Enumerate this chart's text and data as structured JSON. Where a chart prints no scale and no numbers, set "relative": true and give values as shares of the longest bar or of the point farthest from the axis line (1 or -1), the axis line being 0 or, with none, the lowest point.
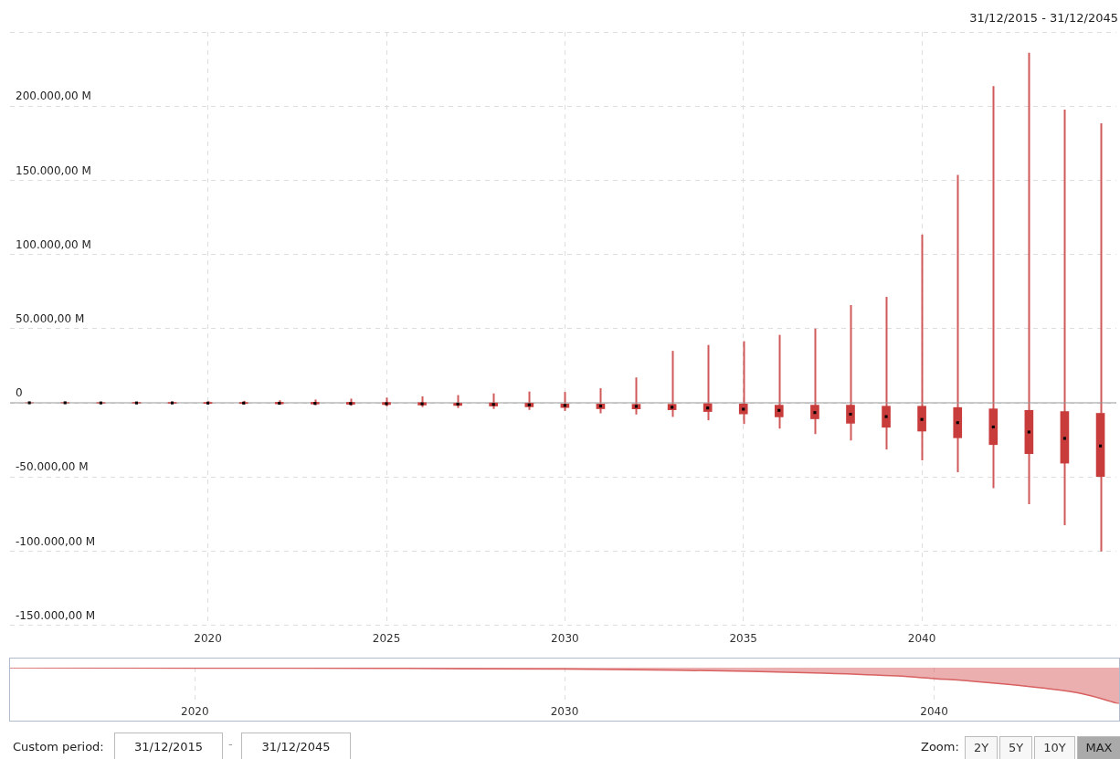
{
  "chart_data": [
    {
      "type": "box",
      "x": [
        "2015",
        "2016",
        "2017",
        "2018",
        "2019",
        "2020",
        "2021",
        "2022",
        "2023",
        "2024",
        "2025",
        "2026",
        "2027",
        "2028",
        "2029",
        "2030",
        "2031",
        "2032",
        "2033",
        "2034",
        "2035",
        "2036",
        "2037",
        "2038",
        "2039",
        "2040",
        "2041",
        "2042",
        "2043",
        "2044",
        "2045"
      ],
      "series": [
        {
          "color": "#c83c3c",
          "boxes": [
            {
              "low": 0,
              "q1": 0,
              "median": 0,
              "q3": 0,
              "high": 0
            },
            {
              "low": -300,
              "q1": -100,
              "median": 0,
              "q3": 100,
              "high": 300
            },
            {
              "low": -400,
              "q1": -200,
              "median": -100,
              "q3": 100,
              "high": 500
            },
            {
              "low": -500,
              "q1": -200,
              "median": -100,
              "q3": 200,
              "high": 600
            },
            {
              "low": -600,
              "q1": -300,
              "median": -100,
              "q3": 200,
              "high": 800
            },
            {
              "low": -800,
              "q1": -400,
              "median": -200,
              "q3": 200,
              "high": 1000
            },
            {
              "low": -1000,
              "q1": -500,
              "median": -200,
              "q3": 200,
              "high": 1300
            },
            {
              "low": -1300,
              "q1": -700,
              "median": -300,
              "q3": 300,
              "high": 1700
            },
            {
              "low": -1600,
              "q1": -800,
              "median": -400,
              "q3": 300,
              "high": 2200
            },
            {
              "low": -2000,
              "q1": -1000,
              "median": -500,
              "q3": 300,
              "high": 2800
            },
            {
              "low": -2400,
              "q1": -1200,
              "median": -600,
              "q3": 200,
              "high": 3500
            },
            {
              "low": -2900,
              "q1": -1500,
              "median": -700,
              "q3": 100,
              "high": 4300
            },
            {
              "low": -3500,
              "q1": -1800,
              "median": -900,
              "q3": 0,
              "high": 5200
            },
            {
              "low": -4100,
              "q1": -2200,
              "median": -1100,
              "q3": -100,
              "high": 6300
            },
            {
              "low": -4800,
              "q1": -2700,
              "median": -1400,
              "q3": -300,
              "high": 7600
            },
            {
              "low": -5500,
              "q1": -3200,
              "median": -1800,
              "q3": -800,
              "high": 7300
            },
            {
              "low": -7100,
              "q1": -4000,
              "median": -2200,
              "q3": -800,
              "high": 9800
            },
            {
              "low": -7900,
              "q1": -4100,
              "median": -2400,
              "q3": -1000,
              "high": 17100
            },
            {
              "low": -9500,
              "q1": -4700,
              "median": -3000,
              "q3": -1000,
              "high": 35000
            },
            {
              "low": -11800,
              "q1": -5900,
              "median": -3500,
              "q3": -600,
              "high": 39000
            },
            {
              "low": -14300,
              "q1": -7500,
              "median": -4300,
              "q3": -800,
              "high": 41500
            },
            {
              "low": -17400,
              "q1": -9500,
              "median": -5100,
              "q3": -1600,
              "high": 45800
            },
            {
              "low": -21100,
              "q1": -10800,
              "median": -6600,
              "q3": -1600,
              "high": 50000
            },
            {
              "low": -25400,
              "q1": -13800,
              "median": -7700,
              "q3": -1600,
              "high": 65900
            },
            {
              "low": -31500,
              "q1": -16500,
              "median": -9300,
              "q3": -2300,
              "high": 71400
            },
            {
              "low": -38800,
              "q1": -19100,
              "median": -11200,
              "q3": -2300,
              "high": 113400
            },
            {
              "low": -46800,
              "q1": -23600,
              "median": -13400,
              "q3": -3200,
              "high": 153700
            },
            {
              "low": -57500,
              "q1": -28200,
              "median": -16300,
              "q3": -4100,
              "high": 213500
            },
            {
              "low": -68300,
              "q1": -34300,
              "median": -19700,
              "q3": -5100,
              "high": 236000
            },
            {
              "low": -82500,
              "q1": -40700,
              "median": -24000,
              "q3": -5900,
              "high": 197600
            },
            {
              "low": -100200,
              "q1": -49600,
              "median": -29100,
              "q3": -7100,
              "high": 188500
            }
          ]
        }
      ],
      "xlim": [
        "2014-06-17",
        "2045-06-13"
      ],
      "xticks": [
        {
          "value": "2020",
          "label": "2020"
        },
        {
          "value": "2025",
          "label": "2025"
        },
        {
          "value": "2030",
          "label": "2030"
        },
        {
          "value": "2035",
          "label": "2035"
        },
        {
          "value": "2040",
          "label": "2040"
        }
      ],
      "ylim": [
        -150000,
        250000
      ],
      "yticks": [
        {
          "value": -150000,
          "label": "-150.000,00 M"
        },
        {
          "value": -100000,
          "label": "-100.000,00 M"
        },
        {
          "value": -50000,
          "label": "-50.000,00 M"
        },
        {
          "value": 0,
          "label": "0"
        },
        {
          "value": 50000,
          "label": "50.000,00 M"
        },
        {
          "value": 100000,
          "label": "100.000,00 M"
        },
        {
          "value": 150000,
          "label": "150.000,00 M"
        },
        {
          "value": 200000,
          "label": "200.000,00 M"
        },
        {
          "value": 250000,
          "label": null
        }
      ],
      "grid": true,
      "ref_lines": [
        {
          "axis": "y",
          "value": 0,
          "color": "#999999"
        }
      ],
      "annotations": [
        "31/12/2015 - 31/12/2045",
        "Custom period:",
        "31/12/2015",
        "-",
        "31/12/2045",
        "Zoom:",
        "2Y",
        "5Y",
        "10Y",
        "MAX"
      ]
    },
    {
      "type": "area",
      "relative": true,
      "x": [
        "2015-01-01",
        "2020-01-01",
        "2025-01-01",
        "2030-01-01",
        "2033-01-01",
        "2035-01-01",
        "2037-01-01",
        "2039-01-01",
        "2040-01-01",
        "2041-01-01",
        "2042-01-01",
        "2043-01-01",
        "2044-01-01",
        "2045-01-01"
      ],
      "series": [
        {
          "color": "#d86060",
          "values": [
            0,
            -0.01,
            -0.02,
            -0.04,
            -0.07,
            -0.1,
            -0.15,
            -0.23,
            -0.3,
            -0.37,
            -0.46,
            -0.57,
            -0.72,
            -1
          ]
        }
      ],
      "xlim": [
        "2015-01-01",
        "2045-01-01"
      ],
      "xticks": [
        {
          "value": "2020",
          "label": "2020"
        },
        {
          "value": "2030",
          "label": "2030"
        },
        {
          "value": "2040",
          "label": "2040"
        }
      ],
      "grid": "x"
    }
  ]
}
